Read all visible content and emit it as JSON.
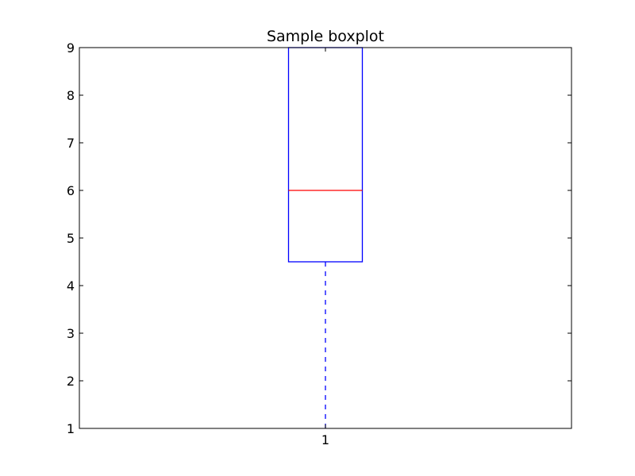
{
  "chart_data": {
    "type": "boxplot",
    "title": "Sample boxplot",
    "xlabel": "",
    "ylabel": "",
    "categories": [
      "1"
    ],
    "ylim": [
      1,
      9
    ],
    "yticks": [
      1,
      2,
      3,
      4,
      5,
      6,
      7,
      8,
      9
    ],
    "grid": false,
    "boxes": [
      {
        "category": "1",
        "whisker_low": 1,
        "q1": 4.5,
        "median": 6,
        "q3": 9,
        "whisker_high": 9
      }
    ],
    "colors": {
      "box": "#0000ff",
      "median": "#ff0000",
      "whisker": "#0000ff",
      "cap": "#000000",
      "axes": "#000000"
    }
  }
}
